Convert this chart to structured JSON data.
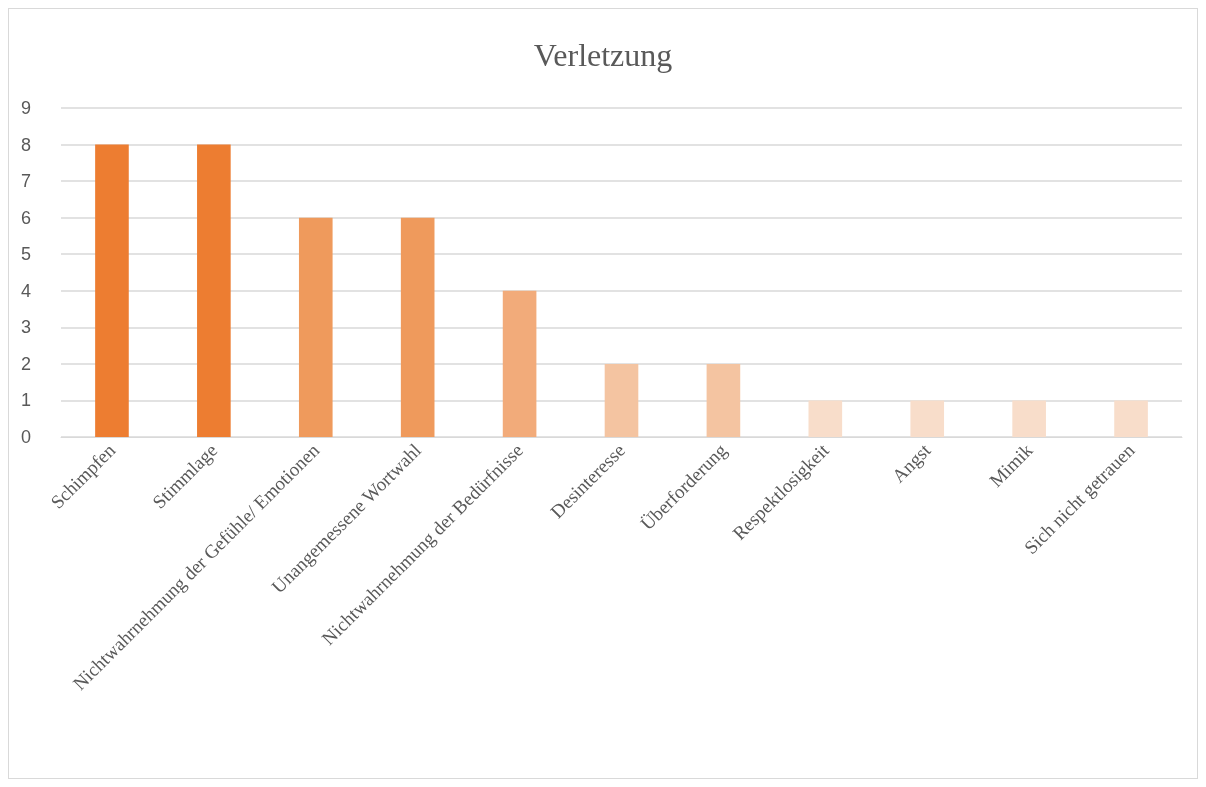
{
  "chart_data": {
    "type": "bar",
    "title": "Verletzung",
    "categories": [
      "Schimpfen",
      "Stimmlage",
      "Nichtwahrnehmung der Gefühle/ Emotionen",
      "Unangemessene Wortwahl",
      "Nichtwahrnehmung der Bedürfnisse",
      "Desinteresse",
      "Überforderung",
      "Respektlosigkeit",
      "Angst",
      "Mimik",
      "Sich nicht getrauen"
    ],
    "values": [
      8,
      8,
      6,
      6,
      4,
      2,
      2,
      1,
      1,
      1,
      1
    ],
    "colors": [
      "#ed7d31",
      "#ed7d31",
      "#ef9a5c",
      "#ef9a5c",
      "#f2ab7a",
      "#f4c4a1",
      "#f4c4a1",
      "#f8ddca",
      "#f8ddca",
      "#f8ddca",
      "#f8ddca"
    ],
    "ylim": [
      0,
      9
    ],
    "yticks": [
      0,
      1,
      2,
      3,
      4,
      5,
      6,
      7,
      8,
      9
    ],
    "grid": "y"
  }
}
